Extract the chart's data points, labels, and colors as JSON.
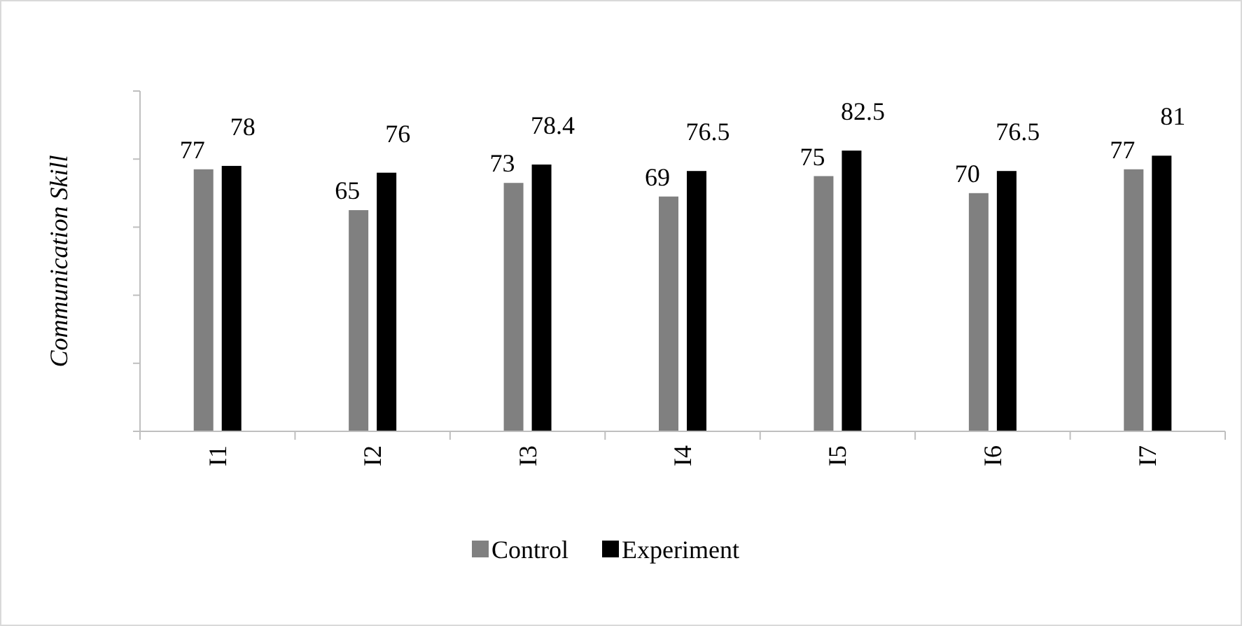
{
  "chart_data": {
    "type": "bar",
    "ylabel": "Communication Skill",
    "categories": [
      "I1",
      "I2",
      "I3",
      "I4",
      "I5",
      "I6",
      "I7"
    ],
    "series": [
      {
        "name": "Control",
        "color": "#808080",
        "values": [
          77,
          65,
          73,
          69,
          75,
          70,
          77
        ]
      },
      {
        "name": "Experiment",
        "color": "#000000",
        "values": [
          78,
          76,
          78.4,
          76.5,
          82.5,
          76.5,
          81
        ]
      }
    ],
    "ylim": [
      0,
      100
    ],
    "yticks": [
      {
        "value": 0,
        "label": null
      },
      {
        "value": 20,
        "label": null
      },
      {
        "value": 40,
        "label": null
      },
      {
        "value": 60,
        "label": null
      },
      {
        "value": 80,
        "label": null
      },
      {
        "value": 100,
        "label": null
      }
    ],
    "tick_labels": "x",
    "data_labels": true,
    "legend": "bottom",
    "grid": false
  }
}
